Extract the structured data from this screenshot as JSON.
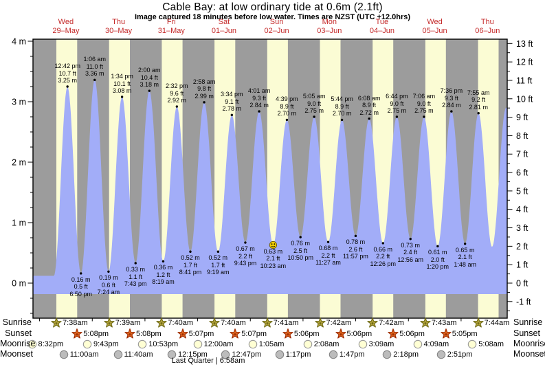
{
  "title": "Cable Bay: at low  ordinary tide at 0.6m (2.1ft)",
  "subtitle": "Image captured 18 minutes before low water. Times are NZST (UTC +12.0hrs)",
  "days": [
    {
      "name": "Wed",
      "date": "29–May"
    },
    {
      "name": "Thu",
      "date": "30–May"
    },
    {
      "name": "Fri",
      "date": "31–May"
    },
    {
      "name": "Sat",
      "date": "01–Jun"
    },
    {
      "name": "Sun",
      "date": "02–Jun"
    },
    {
      "name": "Mon",
      "date": "03–Jun"
    },
    {
      "name": "Tue",
      "date": "04–Jun"
    },
    {
      "name": "Wed",
      "date": "05–Jun"
    },
    {
      "name": "Thu",
      "date": "06–Jun"
    }
  ],
  "axes": {
    "left_unit": "m",
    "left_labels": [
      "4 m",
      "3 m",
      "2 m",
      "1 m",
      "0 m"
    ],
    "right_unit": "ft",
    "right_labels": [
      "13 ft",
      "12 ft",
      "11 ft",
      "10 ft",
      "9 ft",
      "8 ft",
      "7 ft",
      "6 ft",
      "5 ft",
      "4 ft",
      "3 ft",
      "2 ft",
      "1 ft",
      "0 ft",
      "-1 ft"
    ]
  },
  "chart_data": {
    "type": "area",
    "title": "Cable Bay tide height",
    "ylim_m": [
      -0.5,
      4.0
    ],
    "ylim_ft": [
      -1,
      13
    ],
    "highs": [
      {
        "day": 1,
        "time": "12:42 pm",
        "ft": "10.7 ft",
        "m": "3.25 m"
      },
      {
        "day": 2,
        "time": "1:06 am",
        "ft": "11.0 ft",
        "m": "3.36 m"
      },
      {
        "day": 2,
        "time": "1:34 pm",
        "ft": "10.1 ft",
        "m": "3.08 m"
      },
      {
        "day": 3,
        "time": "2:00 am",
        "ft": "10.4 ft",
        "m": "3.18 m"
      },
      {
        "day": 3,
        "time": "2:32 pm",
        "ft": "9.6 ft",
        "m": "2.92 m"
      },
      {
        "day": 4,
        "time": "2:58 am",
        "ft": "9.8 ft",
        "m": "2.99 m"
      },
      {
        "day": 4,
        "time": "3:34 pm",
        "ft": "9.1 ft",
        "m": "2.78 m"
      },
      {
        "day": 5,
        "time": "4:01 am",
        "ft": "9.3 ft",
        "m": "2.84 m"
      },
      {
        "day": 5,
        "time": "4:39 pm",
        "ft": "8.9 ft",
        "m": "2.70 m"
      },
      {
        "day": 6,
        "time": "5:05 am",
        "ft": "9.0 ft",
        "m": "2.75 m"
      },
      {
        "day": 6,
        "time": "5:44 pm",
        "ft": "8.9 ft",
        "m": "2.70 m"
      },
      {
        "day": 7,
        "time": "6:08 am",
        "ft": "8.9 ft",
        "m": "2.72 m"
      },
      {
        "day": 7,
        "time": "6:44 pm",
        "ft": "9.0 ft",
        "m": "2.75 m"
      },
      {
        "day": 8,
        "time": "7:06 am",
        "ft": "9.0 ft",
        "m": "2.75 m"
      },
      {
        "day": 8,
        "time": "7:36 pm",
        "ft": "9.3 ft",
        "m": "2.84 m"
      },
      {
        "day": 9,
        "time": "7:55 am",
        "ft": "9.2 ft",
        "m": "2.81 m"
      }
    ],
    "lows": [
      {
        "day": 1,
        "time": "6:50 pm",
        "ft": "0.5 ft",
        "m": "0.16 m"
      },
      {
        "day": 2,
        "time": "7:24 am",
        "ft": "0.6 ft",
        "m": "0.19 m"
      },
      {
        "day": 2,
        "time": "7:43 pm",
        "ft": "1.1 ft",
        "m": "0.33 m"
      },
      {
        "day": 3,
        "time": "8:19 am",
        "ft": "1.2 ft",
        "m": "0.36 m"
      },
      {
        "day": 3,
        "time": "8:41 pm",
        "ft": "1.7 ft",
        "m": "0.52 m"
      },
      {
        "day": 4,
        "time": "9:19 am",
        "ft": "1.7 ft",
        "m": "0.52 m"
      },
      {
        "day": 4,
        "time": "9:43 pm",
        "ft": "2.2 ft",
        "m": "0.67 m"
      },
      {
        "day": 5,
        "time": "10:23 am",
        "ft": "2.1 ft",
        "m": "0.63 m",
        "current": true
      },
      {
        "day": 5,
        "time": "10:50 pm",
        "ft": "2.5 ft",
        "m": "0.76 m"
      },
      {
        "day": 6,
        "time": "11:27 am",
        "ft": "2.2 ft",
        "m": "0.68 m"
      },
      {
        "day": 6,
        "time": "11:57 pm",
        "ft": "2.6 ft",
        "m": "0.78 m"
      },
      {
        "day": 7,
        "time": "12:26 pm",
        "ft": "2.2 ft",
        "m": "0.66 m"
      },
      {
        "day": 8,
        "time": "12:56 am",
        "ft": "2.4 ft",
        "m": "0.73 m"
      },
      {
        "day": 8,
        "time": "1:20 pm",
        "ft": "2.0 ft",
        "m": "0.61 m"
      },
      {
        "day": 9,
        "time": "1:48 am",
        "ft": "2.1 ft",
        "m": "0.65 m"
      }
    ],
    "edge_extremes": [
      {
        "kind": "low",
        "day": 1,
        "time": "6:30 am",
        "height_m": 0.12,
        "labeled": false
      },
      {
        "kind": "low",
        "day": 9,
        "time": "2:05 pm",
        "height_m": 0.6,
        "labeled": false
      },
      {
        "kind": "high",
        "day": 9,
        "time": "8:30 pm",
        "height_m": 2.9,
        "labeled": false
      }
    ]
  },
  "astro": {
    "rows": [
      {
        "key": "sunrise",
        "label": "Sunrise",
        "icon": "sunrise-star-icon",
        "items": [
          {
            "day": 1,
            "time": "7:38am"
          },
          {
            "day": 2,
            "time": "7:39am"
          },
          {
            "day": 3,
            "time": "7:40am"
          },
          {
            "day": 4,
            "time": "7:40am"
          },
          {
            "day": 5,
            "time": "7:41am"
          },
          {
            "day": 6,
            "time": "7:42am"
          },
          {
            "day": 7,
            "time": "7:42am"
          },
          {
            "day": 8,
            "time": "7:43am"
          },
          {
            "day": 9,
            "time": "7:44am"
          }
        ]
      },
      {
        "key": "sunset",
        "label": "Sunset",
        "icon": "sunset-star-icon",
        "items": [
          {
            "day": 1,
            "time": "5:08pm"
          },
          {
            "day": 2,
            "time": "5:08pm"
          },
          {
            "day": 3,
            "time": "5:07pm"
          },
          {
            "day": 4,
            "time": "5:07pm"
          },
          {
            "day": 5,
            "time": "5:06pm"
          },
          {
            "day": 6,
            "time": "5:06pm"
          },
          {
            "day": 7,
            "time": "5:06pm"
          },
          {
            "day": 8,
            "time": "5:05pm"
          }
        ]
      },
      {
        "key": "moonrise",
        "label": "Moonrise",
        "icon": "moonrise-circle-icon",
        "items": [
          {
            "day": 0,
            "time": "8:32pm"
          },
          {
            "day": 1,
            "time": "9:43pm"
          },
          {
            "day": 2,
            "time": "10:53pm"
          },
          {
            "day": 4,
            "time": "12:00am"
          },
          {
            "day": 5,
            "time": "1:05am"
          },
          {
            "day": 6,
            "time": "2:08am"
          },
          {
            "day": 7,
            "time": "3:09am"
          },
          {
            "day": 8,
            "time": "4:09am"
          },
          {
            "day": 9,
            "time": "5:08am"
          }
        ]
      },
      {
        "key": "moonset",
        "label": "Moonset",
        "icon": "moonset-circle-icon",
        "items": [
          {
            "day": 1,
            "time": "11:00am"
          },
          {
            "day": 2,
            "time": "11:40am"
          },
          {
            "day": 3,
            "time": "12:15pm"
          },
          {
            "day": 4,
            "time": "12:47pm"
          },
          {
            "day": 5,
            "time": "1:17pm"
          },
          {
            "day": 6,
            "time": "1:47pm"
          },
          {
            "day": 7,
            "time": "2:18pm"
          },
          {
            "day": 8,
            "time": "2:51pm"
          }
        ]
      }
    ],
    "moon_phase_label": "Last Quarter | 6:58am"
  },
  "colors": {
    "night_band": "#9c9c9c",
    "day_band": "#fbfcd4",
    "tide_fill": "#a2adf8",
    "day_label_red": "#c52b2b",
    "frame": "#000000",
    "sunrise_star": "#b2a23b",
    "sunrise_star_outline": "#6f6a16",
    "sunset_star": "#e0671f",
    "sunset_star_outline": "#9c2a00",
    "moonrise_fill": "#ffffd4",
    "moonrise_outline": "#999999",
    "moonset_fill": "#bcbcbc",
    "moonset_outline": "#858585",
    "marker_yellow": "#f0cd05"
  }
}
